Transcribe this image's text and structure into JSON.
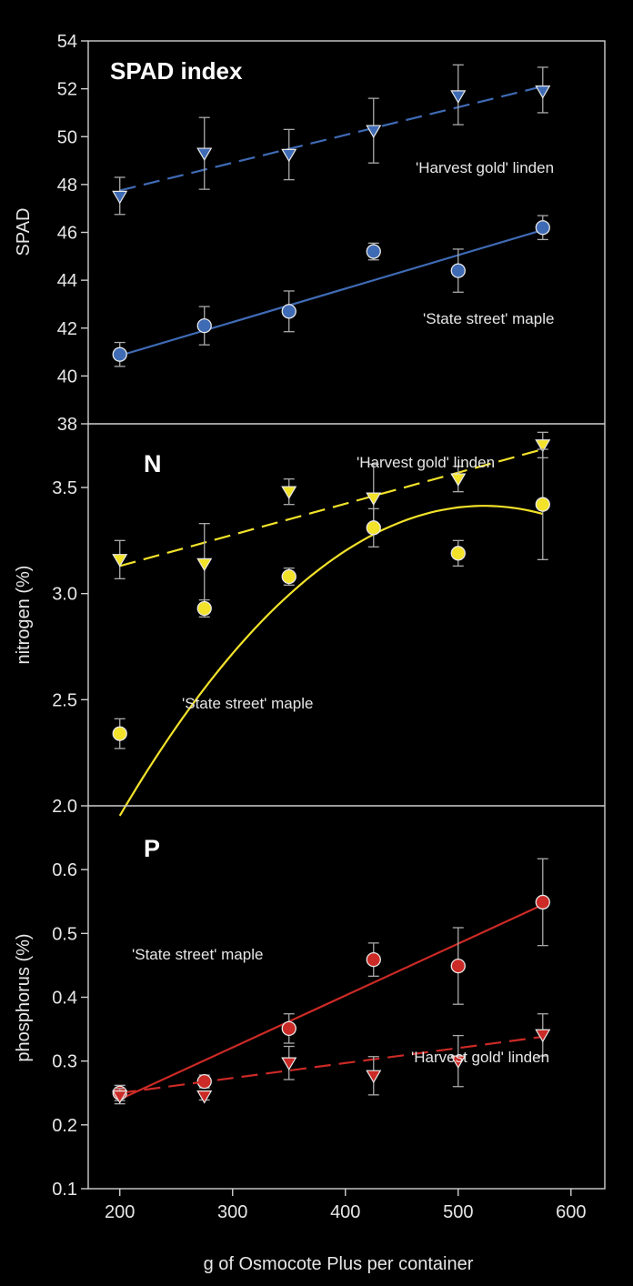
{
  "colors": {
    "background": "#000000",
    "frame": "#cfcfcf",
    "spad": "#3f6bb5",
    "nitrogen": "#f2e22a",
    "phosphorus": "#cc2a26",
    "errorbar": "#aaaaaa"
  },
  "xaxis": {
    "label": "g of Osmocote Plus per container",
    "ticks": [
      200,
      300,
      400,
      500,
      600
    ],
    "range": [
      172,
      630
    ]
  },
  "chart_data": [
    {
      "type": "scatter",
      "title": "SPAD index",
      "ylabel": "SPAD",
      "ylim": [
        38,
        54
      ],
      "yticks": [
        38,
        40,
        42,
        44,
        46,
        48,
        50,
        52,
        54
      ],
      "color": "#3f6bb5",
      "series": [
        {
          "name": "'Harvest gold' linden",
          "marker": "triangle-down",
          "line": "dashed",
          "x": [
            200,
            275,
            350,
            425,
            500,
            575
          ],
          "y": [
            47.5,
            49.3,
            49.25,
            50.25,
            51.7,
            51.9
          ],
          "err_low": [
            0.75,
            1.5,
            1.05,
            1.35,
            1.2,
            0.9
          ],
          "err_high": [
            0.8,
            1.5,
            1.05,
            1.35,
            1.3,
            1.0
          ],
          "fit": {
            "kind": "linear",
            "x": [
              200,
              575
            ],
            "y": [
              47.75,
              52.1
            ]
          },
          "label_pos": "upper-right"
        },
        {
          "name": "'State street' maple",
          "marker": "circle",
          "line": "solid",
          "x": [
            200,
            275,
            350,
            425,
            500,
            575
          ],
          "y": [
            40.9,
            42.1,
            42.7,
            45.2,
            44.4,
            46.2
          ],
          "err_low": [
            0.5,
            0.8,
            0.85,
            0.35,
            0.9,
            0.5
          ],
          "err_high": [
            0.5,
            0.8,
            0.85,
            0.35,
            0.9,
            0.5
          ],
          "fit": {
            "kind": "linear",
            "x": [
              200,
              575
            ],
            "y": [
              40.85,
              46.1
            ]
          },
          "label_pos": "lower-right"
        }
      ]
    },
    {
      "type": "scatter",
      "title": "N",
      "ylabel": "nitrogen (%)",
      "ylim": [
        2.0,
        3.8
      ],
      "yticks": [
        2.0,
        2.5,
        3.0,
        3.5
      ],
      "ytick_labels": [
        "2.0",
        "2.5",
        "3.0",
        "3.5"
      ],
      "color": "#f2e22a",
      "series": [
        {
          "name": "'Harvest gold' linden",
          "marker": "triangle-down",
          "line": "dashed",
          "x": [
            200,
            275,
            350,
            425,
            500,
            575
          ],
          "y": [
            3.16,
            3.14,
            3.48,
            3.45,
            3.54,
            3.7
          ],
          "err_low": [
            0.09,
            0.19,
            0.06,
            0.16,
            0.06,
            0.06
          ],
          "err_high": [
            0.09,
            0.19,
            0.06,
            0.16,
            0.06,
            0.06
          ],
          "fit": {
            "kind": "linear",
            "x": [
              200,
              575
            ],
            "y": [
              3.13,
              3.68
            ]
          },
          "label_pos": "upper-right"
        },
        {
          "name": "'State street' maple",
          "marker": "circle",
          "line": "solid",
          "x": [
            200,
            275,
            350,
            425,
            500,
            575
          ],
          "y": [
            2.34,
            2.93,
            3.08,
            3.31,
            3.19,
            3.42
          ],
          "err_low": [
            0.07,
            0.04,
            0.04,
            0.09,
            0.06,
            0.26
          ],
          "err_high": [
            0.07,
            0.04,
            0.04,
            0.09,
            0.06,
            0.26
          ],
          "fit": {
            "kind": "quadratic",
            "x": [
              200,
              575
            ],
            "coef": [
              -0.4155,
              0.014643,
              -1.4e-05
            ]
          },
          "label_pos": "lower-middle"
        }
      ]
    },
    {
      "type": "scatter",
      "title": "P",
      "ylabel": "phosphorus (%)",
      "ylim": [
        0.1,
        0.7
      ],
      "yticks": [
        0.1,
        0.2,
        0.3,
        0.4,
        0.5,
        0.6
      ],
      "ytick_labels": [
        "0.1",
        "0.2",
        "0.3",
        "0.4",
        "0.5",
        "0.6"
      ],
      "color": "#cc2a26",
      "series": [
        {
          "name": "'State street' maple",
          "marker": "circle",
          "line": "solid",
          "x": [
            200,
            275,
            350,
            425,
            500,
            575
          ],
          "y": [
            0.25,
            0.268,
            0.351,
            0.459,
            0.449,
            0.549
          ],
          "err_low": [
            0.012,
            0.01,
            0.023,
            0.026,
            0.06,
            0.068
          ],
          "err_high": [
            0.012,
            0.01,
            0.023,
            0.026,
            0.06,
            0.068
          ],
          "fit": {
            "kind": "linear",
            "x": [
              200,
              575
            ],
            "y": [
              0.24,
              0.545
            ]
          },
          "label_pos": "left-middle"
        },
        {
          "name": "'Harvest gold' linden",
          "marker": "triangle-down",
          "line": "dashed",
          "x": [
            200,
            275,
            350,
            425,
            500,
            575
          ],
          "y": [
            0.245,
            0.245,
            0.297,
            0.277,
            0.3,
            0.341
          ],
          "err_low": [
            0.012,
            0.006,
            0.026,
            0.03,
            0.04,
            0.033
          ],
          "err_high": [
            0.012,
            0.006,
            0.026,
            0.03,
            0.04,
            0.033
          ],
          "fit": {
            "kind": "linear",
            "x": [
              200,
              575
            ],
            "y": [
              0.25,
              0.338
            ]
          },
          "label_pos": "lower-right"
        }
      ]
    }
  ]
}
